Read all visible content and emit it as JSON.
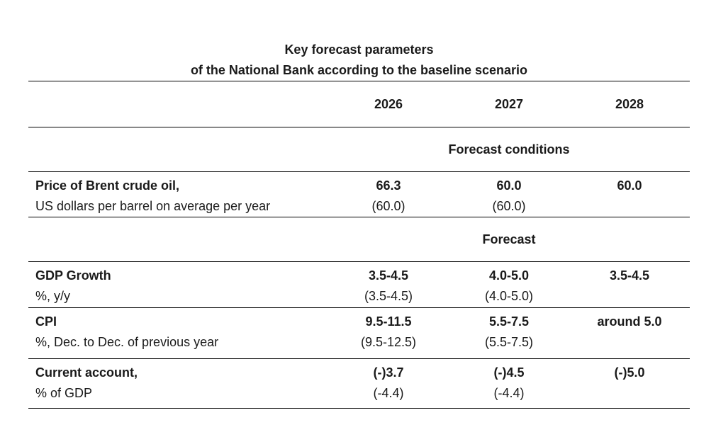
{
  "page": {
    "background_color": "#ffffff",
    "text_color": "#1a1a1a",
    "rule_color": "#000000"
  },
  "title": {
    "line1": "Key forecast parameters",
    "line2": "of the National Bank according to the baseline scenario"
  },
  "table": {
    "year_columns": [
      "2026",
      "2027",
      "2028"
    ],
    "sections": [
      {
        "header": "Forecast conditions",
        "rows": [
          {
            "label": "Price of Brent crude oil,",
            "sublabel": "US dollars per barrel on average per year",
            "values": [
              {
                "main": "66.3",
                "sub": "(60.0)"
              },
              {
                "main": "60.0",
                "sub": "(60.0)"
              },
              {
                "main": "60.0",
                "sub": ""
              }
            ]
          }
        ]
      },
      {
        "header": "Forecast",
        "rows": [
          {
            "label": "GDP Growth",
            "sublabel": "%, y/y",
            "values": [
              {
                "main": "3.5-4.5",
                "sub": "(3.5-4.5)"
              },
              {
                "main": "4.0-5.0",
                "sub": "(4.0-5.0)"
              },
              {
                "main": "3.5-4.5",
                "sub": ""
              }
            ]
          },
          {
            "label": "CPI",
            "sublabel": "%, Dec. to Dec. of previous year",
            "values": [
              {
                "main": "9.5-11.5",
                "sub": "(9.5-12.5)"
              },
              {
                "main": "5.5-7.5",
                "sub": "(5.5-7.5)"
              },
              {
                "main": "around 5.0",
                "sub": ""
              }
            ]
          },
          {
            "label": "Current account,",
            "sublabel": "% of GDP",
            "values": [
              {
                "main": "(-)3.7",
                "sub": "(-4.4)"
              },
              {
                "main": "(-)4.5",
                "sub": "(-4.4)"
              },
              {
                "main": "(-)5.0",
                "sub": ""
              }
            ]
          }
        ]
      }
    ]
  }
}
